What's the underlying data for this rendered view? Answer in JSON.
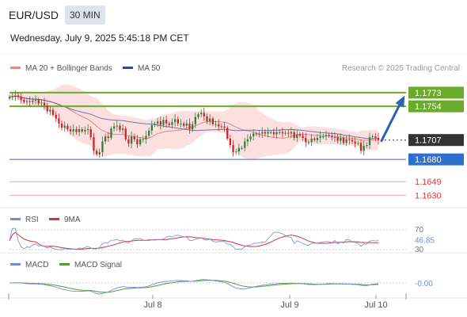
{
  "header": {
    "symbol": "EUR/USD",
    "timeframe": "30 MIN",
    "datetime": "Wednesday, July 9, 2025 5:45:18 PM CET"
  },
  "legend": {
    "ma20_label": "MA 20 + Bollinger Bands",
    "ma50_label": "MA 50",
    "credit": "Research © 2025 Trading Central",
    "rsi_label": "RSI",
    "rsi_ma_label": "9MA",
    "macd_label": "MACD",
    "macd_signal_label": "MACD Signal"
  },
  "colors": {
    "ma20": "#ee8580",
    "bollinger_fill": "#fbd9d9",
    "ma50": "#2a4d8f",
    "candle_up": "#2f7d3f",
    "candle_down": "#c62828",
    "resistance": "#6aac2a",
    "support": "#2f6fd0",
    "support_red": "#dd3b3b",
    "last_price": "#333333",
    "arrow": "#2f62b0",
    "rsi": "#6f8fd8",
    "rsi_ma": "#d9333a",
    "macd": "#6f8fd8",
    "macd_signal": "#4f9f2a"
  },
  "chart_data": [
    {
      "type": "candlestick",
      "x_ticks": [
        "Jul 8",
        "Jul 9",
        "Jul 10"
      ],
      "ylim": [
        1.1615,
        1.1795
      ],
      "levels": [
        {
          "name": "resistance",
          "label": "1.1773",
          "value": 1.1773,
          "style": "green-box"
        },
        {
          "name": "resistance",
          "label": "1.1754",
          "value": 1.1754,
          "style": "green-box"
        },
        {
          "name": "last-price",
          "label": "1.1707",
          "value": 1.1707,
          "style": "dark-box"
        },
        {
          "name": "support",
          "label": "1.1680",
          "value": 1.168,
          "style": "blue-box"
        },
        {
          "name": "support",
          "label": "1.1649",
          "value": 1.1649,
          "style": "red-text"
        },
        {
          "name": "support",
          "label": "1.1630",
          "value": 1.163,
          "style": "red-text"
        }
      ],
      "close": [
        1.1767,
        1.1768,
        1.1769,
        1.1767,
        1.1763,
        1.176,
        1.1761,
        1.176,
        1.1762,
        1.1763,
        1.1758,
        1.1759,
        1.1755,
        1.1747,
        1.1749,
        1.1742,
        1.1737,
        1.173,
        1.1724,
        1.1727,
        1.1722,
        1.1719,
        1.1722,
        1.1718,
        1.1722,
        1.1719,
        1.1721,
        1.1722,
        1.1711,
        1.1692,
        1.1687,
        1.169,
        1.1705,
        1.1712,
        1.171,
        1.1723,
        1.1726,
        1.1727,
        1.1721,
        1.1723,
        1.1708,
        1.1702,
        1.1712,
        1.1708,
        1.1701,
        1.1708,
        1.1708,
        1.1713,
        1.172,
        1.1728,
        1.173,
        1.1733,
        1.1728,
        1.1735,
        1.173,
        1.1728,
        1.1732,
        1.1736,
        1.173,
        1.173,
        1.1727,
        1.173,
        1.1722,
        1.1729,
        1.1739,
        1.1743,
        1.1745,
        1.174,
        1.1733,
        1.1737,
        1.1729,
        1.1729,
        1.1726,
        1.1726,
        1.1724,
        1.1709,
        1.17,
        1.169,
        1.1691,
        1.1696,
        1.1696,
        1.1705,
        1.1708,
        1.1712,
        1.1716,
        1.1715,
        1.1716,
        1.1718,
        1.1716,
        1.1718,
        1.1718,
        1.1715,
        1.1718,
        1.1718,
        1.1716,
        1.1717,
        1.1716,
        1.1718,
        1.171,
        1.1715,
        1.1713,
        1.171,
        1.1704,
        1.1704,
        1.1709,
        1.1707,
        1.171,
        1.1712,
        1.1712,
        1.1714,
        1.1713,
        1.1711,
        1.1711,
        1.1706,
        1.171,
        1.1703,
        1.1708,
        1.1707,
        1.1705,
        1.1702,
        1.1703,
        1.1692,
        1.1699,
        1.17,
        1.1711,
        1.1712,
        1.171,
        1.1707
      ]
    },
    {
      "type": "line",
      "name": "RSI",
      "y_ticks": [
        "70",
        "46.85",
        "30"
      ],
      "last_value": "46.85"
    },
    {
      "type": "line",
      "name": "MACD",
      "last_value": "-0.00"
    }
  ]
}
